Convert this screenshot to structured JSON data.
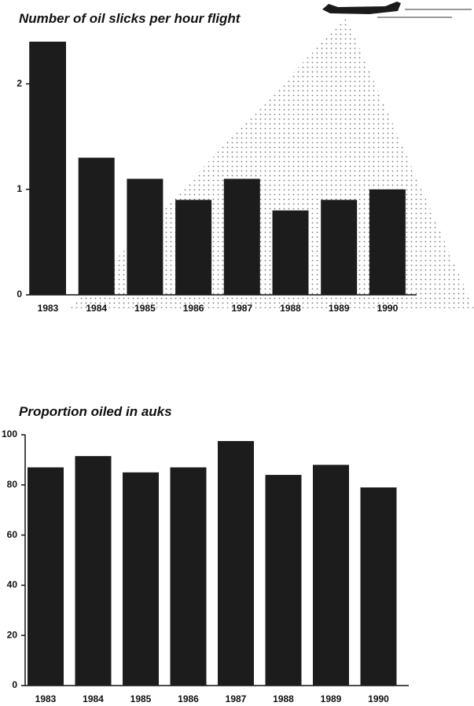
{
  "chart_data": [
    {
      "type": "bar",
      "title": "Number of oil slicks per hour flight",
      "categories": [
        "1983",
        "1984",
        "1985",
        "1986",
        "1987",
        "1988",
        "1989",
        "1990"
      ],
      "values": [
        2.4,
        1.3,
        1.1,
        0.9,
        1.1,
        0.8,
        0.9,
        1.0
      ],
      "color": "#1c1c1c",
      "ylim": [
        0,
        2.4
      ],
      "yticks": [
        0,
        1,
        2
      ]
    },
    {
      "type": "bar",
      "title": "Proportion oiled in auks",
      "categories": [
        "1983",
        "1984",
        "1985",
        "1986",
        "1987",
        "1988",
        "1989",
        "1990"
      ],
      "values": [
        87,
        91.5,
        85,
        87,
        97.5,
        84,
        88,
        79
      ],
      "color": "#1c1c1c",
      "ylim": [
        0,
        100
      ],
      "yticks": [
        0,
        20,
        40,
        60,
        80,
        100
      ]
    }
  ]
}
